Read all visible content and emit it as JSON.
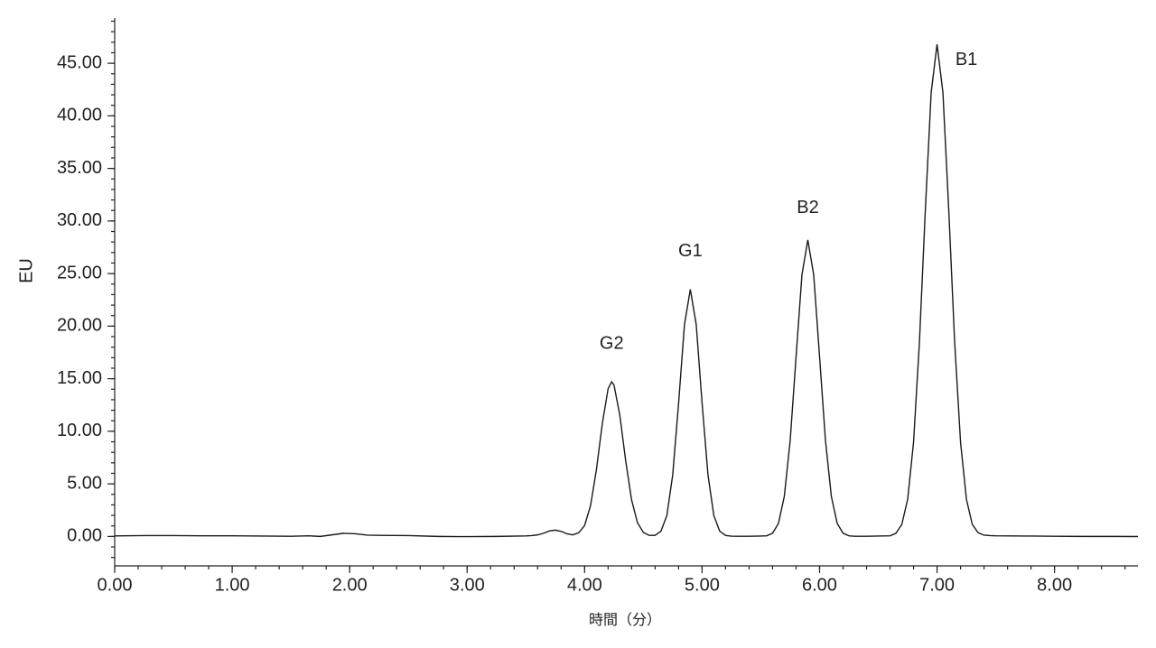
{
  "chart_data": {
    "type": "line",
    "xlabel": "時間（分）",
    "ylabel": "EU",
    "color": "#1a1a1a",
    "x": [
      0,
      0.25,
      0.5,
      0.75,
      1.0,
      1.25,
      1.5,
      1.65,
      1.75,
      1.85,
      1.95,
      2.05,
      2.15,
      2.25,
      2.5,
      2.75,
      3.0,
      3.25,
      3.5,
      3.55,
      3.6,
      3.65,
      3.7,
      3.75,
      3.8,
      3.85,
      3.9,
      3.95,
      4.0,
      4.05,
      4.1,
      4.15,
      4.2,
      4.23,
      4.25,
      4.3,
      4.35,
      4.4,
      4.45,
      4.5,
      4.55,
      4.6,
      4.65,
      4.7,
      4.75,
      4.8,
      4.85,
      4.9,
      4.95,
      5.0,
      5.05,
      5.1,
      5.15,
      5.2,
      5.25,
      5.3,
      5.35,
      5.4,
      5.45,
      5.5,
      5.55,
      5.6,
      5.65,
      5.7,
      5.75,
      5.8,
      5.85,
      5.9,
      5.95,
      6.0,
      6.05,
      6.1,
      6.15,
      6.2,
      6.25,
      6.3,
      6.35,
      6.4,
      6.45,
      6.5,
      6.55,
      6.6,
      6.65,
      6.7,
      6.75,
      6.8,
      6.85,
      6.9,
      6.95,
      7.0,
      7.05,
      7.1,
      7.15,
      7.2,
      7.25,
      7.3,
      7.35,
      7.4,
      7.45,
      7.5,
      7.75,
      8.0,
      8.25,
      8.5,
      8.71
    ],
    "values": [
      0.05,
      0.08,
      0.08,
      0.06,
      0.06,
      0.04,
      0.02,
      0.06,
      0.0,
      0.15,
      0.3,
      0.25,
      0.12,
      0.1,
      0.08,
      0.0,
      -0.02,
      0.0,
      0.05,
      0.08,
      0.15,
      0.3,
      0.52,
      0.6,
      0.48,
      0.25,
      0.15,
      0.35,
      1.04,
      2.91,
      6.31,
      10.67,
      14.05,
      14.7,
      14.41,
      11.51,
      7.16,
      3.47,
      1.31,
      0.38,
      0.1,
      0.1,
      0.5,
      1.99,
      5.86,
      12.67,
      20.15,
      23.5,
      20.15,
      12.67,
      5.86,
      1.99,
      0.5,
      0.09,
      0.03,
      0.02,
      0.02,
      0.02,
      0.03,
      0.04,
      0.06,
      0.31,
      1.24,
      3.82,
      9.15,
      17.1,
      24.88,
      28.2,
      24.88,
      17.1,
      9.15,
      3.82,
      1.24,
      0.31,
      0.06,
      0.02,
      0.02,
      0.02,
      0.03,
      0.04,
      0.05,
      0.06,
      0.3,
      1.14,
      3.54,
      8.96,
      18.47,
      30.96,
      42.22,
      46.8,
      42.22,
      30.96,
      18.47,
      8.96,
      3.54,
      1.14,
      0.35,
      0.12,
      0.08,
      0.06,
      0.04,
      0.02,
      0.0,
      0.0,
      -0.01
    ],
    "xlim": [
      0,
      8.71
    ],
    "ylim": [
      -2.8,
      49.3
    ],
    "xticks": [
      {
        "value": 0,
        "label": "0.00"
      },
      {
        "value": 1,
        "label": "1.00"
      },
      {
        "value": 2,
        "label": "2.00"
      },
      {
        "value": 3,
        "label": "3.00"
      },
      {
        "value": 4,
        "label": "4.00"
      },
      {
        "value": 5,
        "label": "5.00"
      },
      {
        "value": 6,
        "label": "6.00"
      },
      {
        "value": 7,
        "label": "7.00"
      },
      {
        "value": 8,
        "label": "8.00"
      }
    ],
    "yticks": [
      {
        "value": 0,
        "label": "0.00"
      },
      {
        "value": 5,
        "label": "5.00"
      },
      {
        "value": 10,
        "label": "10.00"
      },
      {
        "value": 15,
        "label": "15.00"
      },
      {
        "value": 20,
        "label": "20.00"
      },
      {
        "value": 25,
        "label": "25.00"
      },
      {
        "value": 30,
        "label": "30.00"
      },
      {
        "value": 35,
        "label": "35.00"
      },
      {
        "value": 40,
        "label": "40.00"
      },
      {
        "value": 45,
        "label": "45.00"
      }
    ],
    "annotations": [
      {
        "text": "G2",
        "x": 4.23,
        "y": 18.3
      },
      {
        "text": "G1",
        "x": 4.9,
        "y": 27.1
      },
      {
        "text": "B2",
        "x": 5.9,
        "y": 31.2
      },
      {
        "text": "B1",
        "x": 7.25,
        "y": 45.3
      }
    ]
  }
}
